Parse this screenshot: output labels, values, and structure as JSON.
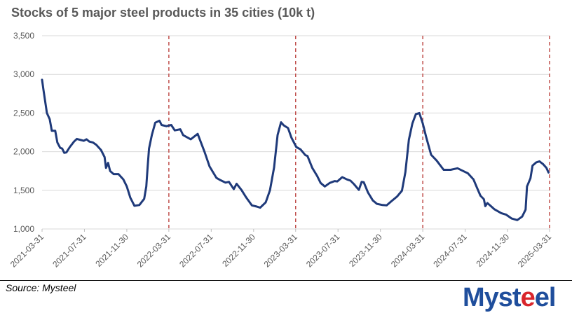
{
  "chart_data": {
    "type": "line",
    "title": "Stocks of 5 major steel products in 35 cities (10k t)",
    "xlabel": "",
    "ylabel": "",
    "ylim": [
      1000,
      3500
    ],
    "yticks": [
      1000,
      1500,
      2000,
      2500,
      3000,
      3500
    ],
    "ytick_labels": [
      "1,000",
      "1,500",
      "2,000",
      "2,500",
      "3,000",
      "3,500"
    ],
    "xlim": [
      "2021-03-31",
      "2025-03-31"
    ],
    "xtick_labels": [
      "2021-03-31",
      "2021-07-31",
      "2021-11-30",
      "2022-03-31",
      "2022-07-31",
      "2022-11-30",
      "2023-03-31",
      "2023-07-31",
      "2023-11-30",
      "2024-03-31",
      "2024-07-31",
      "2024-11-30",
      "2025-03-31"
    ],
    "grid": true,
    "reference_lines": [
      "2022-03-31",
      "2023-03-31",
      "2024-03-31",
      "2025-03-31"
    ],
    "series": [
      {
        "name": "Stocks",
        "color": "#1f3a7a",
        "points": [
          [
            "2021-03-31",
            2930
          ],
          [
            "2021-04-04",
            2800
          ],
          [
            "2021-04-14",
            2500
          ],
          [
            "2021-04-22",
            2420
          ],
          [
            "2021-04-28",
            2270
          ],
          [
            "2021-05-08",
            2270
          ],
          [
            "2021-05-14",
            2120
          ],
          [
            "2021-05-22",
            2050
          ],
          [
            "2021-05-28",
            2040
          ],
          [
            "2021-06-03",
            1985
          ],
          [
            "2021-06-09",
            1990
          ],
          [
            "2021-06-19",
            2060
          ],
          [
            "2021-07-01",
            2130
          ],
          [
            "2021-07-09",
            2165
          ],
          [
            "2021-07-21",
            2150
          ],
          [
            "2021-07-29",
            2140
          ],
          [
            "2021-08-06",
            2160
          ],
          [
            "2021-08-14",
            2130
          ],
          [
            "2021-08-24",
            2120
          ],
          [
            "2021-09-03",
            2090
          ],
          [
            "2021-09-17",
            2020
          ],
          [
            "2021-09-27",
            1930
          ],
          [
            "2021-10-01",
            1790
          ],
          [
            "2021-10-07",
            1855
          ],
          [
            "2021-10-13",
            1750
          ],
          [
            "2021-10-23",
            1710
          ],
          [
            "2021-11-06",
            1710
          ],
          [
            "2021-11-20",
            1640
          ],
          [
            "2021-11-30",
            1550
          ],
          [
            "2021-12-10",
            1405
          ],
          [
            "2021-12-22",
            1300
          ],
          [
            "2022-01-05",
            1310
          ],
          [
            "2022-01-19",
            1390
          ],
          [
            "2022-01-25",
            1550
          ],
          [
            "2022-01-29",
            1800
          ],
          [
            "2022-02-02",
            2040
          ],
          [
            "2022-02-10",
            2215
          ],
          [
            "2022-02-20",
            2375
          ],
          [
            "2022-03-04",
            2400
          ],
          [
            "2022-03-10",
            2345
          ],
          [
            "2022-03-24",
            2330
          ],
          [
            "2022-04-07",
            2345
          ],
          [
            "2022-04-17",
            2275
          ],
          [
            "2022-05-03",
            2290
          ],
          [
            "2022-05-11",
            2215
          ],
          [
            "2022-06-02",
            2160
          ],
          [
            "2022-06-22",
            2230
          ],
          [
            "2022-07-12",
            1995
          ],
          [
            "2022-07-26",
            1810
          ],
          [
            "2022-08-15",
            1660
          ],
          [
            "2022-08-27",
            1630
          ],
          [
            "2022-09-10",
            1600
          ],
          [
            "2022-09-20",
            1610
          ],
          [
            "2022-10-04",
            1515
          ],
          [
            "2022-10-12",
            1585
          ],
          [
            "2022-10-26",
            1505
          ],
          [
            "2022-11-09",
            1405
          ],
          [
            "2022-11-25",
            1305
          ],
          [
            "2022-12-09",
            1290
          ],
          [
            "2022-12-19",
            1275
          ],
          [
            "2023-01-04",
            1345
          ],
          [
            "2023-01-16",
            1500
          ],
          [
            "2023-01-28",
            1795
          ],
          [
            "2023-02-07",
            2215
          ],
          [
            "2023-02-17",
            2380
          ],
          [
            "2023-02-25",
            2340
          ],
          [
            "2023-03-09",
            2305
          ],
          [
            "2023-03-19",
            2180
          ],
          [
            "2023-04-02",
            2060
          ],
          [
            "2023-04-14",
            2030
          ],
          [
            "2023-04-28",
            1955
          ],
          [
            "2023-05-04",
            1945
          ],
          [
            "2023-05-18",
            1790
          ],
          [
            "2023-06-01",
            1685
          ],
          [
            "2023-06-11",
            1595
          ],
          [
            "2023-06-23",
            1550
          ],
          [
            "2023-07-07",
            1595
          ],
          [
            "2023-07-21",
            1620
          ],
          [
            "2023-07-29",
            1615
          ],
          [
            "2023-08-12",
            1670
          ],
          [
            "2023-08-26",
            1640
          ],
          [
            "2023-09-05",
            1625
          ],
          [
            "2023-09-15",
            1580
          ],
          [
            "2023-09-29",
            1505
          ],
          [
            "2023-10-07",
            1610
          ],
          [
            "2023-10-13",
            1605
          ],
          [
            "2023-10-25",
            1475
          ],
          [
            "2023-11-08",
            1370
          ],
          [
            "2023-11-20",
            1325
          ],
          [
            "2023-12-06",
            1310
          ],
          [
            "2023-12-18",
            1305
          ],
          [
            "2024-01-01",
            1360
          ],
          [
            "2024-01-17",
            1420
          ],
          [
            "2024-01-31",
            1495
          ],
          [
            "2024-02-10",
            1735
          ],
          [
            "2024-02-20",
            2155
          ],
          [
            "2024-03-01",
            2365
          ],
          [
            "2024-03-11",
            2485
          ],
          [
            "2024-03-21",
            2500
          ],
          [
            "2024-03-31",
            2365
          ],
          [
            "2024-04-10",
            2185
          ],
          [
            "2024-04-24",
            1960
          ],
          [
            "2024-05-10",
            1885
          ],
          [
            "2024-05-30",
            1765
          ],
          [
            "2024-06-19",
            1765
          ],
          [
            "2024-07-09",
            1785
          ],
          [
            "2024-07-25",
            1750
          ],
          [
            "2024-08-08",
            1720
          ],
          [
            "2024-08-24",
            1640
          ],
          [
            "2024-09-03",
            1535
          ],
          [
            "2024-09-13",
            1430
          ],
          [
            "2024-09-23",
            1385
          ],
          [
            "2024-09-27",
            1295
          ],
          [
            "2024-10-03",
            1335
          ],
          [
            "2024-10-13",
            1295
          ],
          [
            "2024-10-23",
            1255
          ],
          [
            "2024-11-12",
            1205
          ],
          [
            "2024-11-26",
            1185
          ],
          [
            "2024-12-12",
            1135
          ],
          [
            "2024-12-28",
            1115
          ],
          [
            "2025-01-11",
            1160
          ],
          [
            "2025-01-21",
            1250
          ],
          [
            "2025-01-25",
            1550
          ],
          [
            "2025-02-04",
            1655
          ],
          [
            "2025-02-10",
            1820
          ],
          [
            "2025-02-20",
            1860
          ],
          [
            "2025-03-02",
            1875
          ],
          [
            "2025-03-12",
            1840
          ],
          [
            "2025-03-22",
            1790
          ],
          [
            "2025-03-28",
            1730
          ]
        ]
      }
    ]
  },
  "footer": {
    "source": "Source: Mysteel",
    "logo_prefix": "Myst",
    "logo_accent": "e",
    "logo_suffix": "el"
  }
}
